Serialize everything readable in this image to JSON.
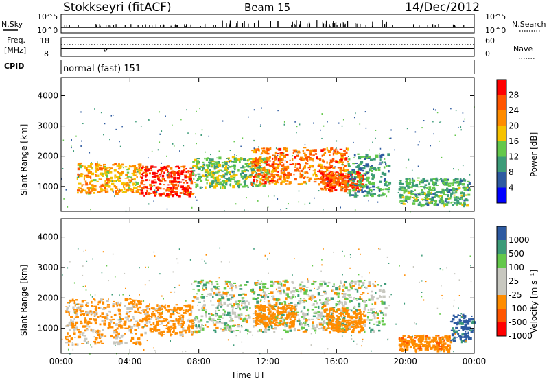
{
  "header": {
    "station": "Stokkseyri (fitACF)",
    "beam": "Beam 15",
    "date": "14/Dec/2012"
  },
  "nsky_panel": {
    "left_label": "N.Sky",
    "right_label": "N.Search",
    "left_ticks": [
      "10^5",
      "10^0"
    ],
    "right_ticks": [
      "10^5",
      "10^0"
    ]
  },
  "freq_panel": {
    "left_label_line1": "Freq.",
    "left_label_line2": "[MHz]",
    "left_ticks": [
      "18",
      "8"
    ],
    "right_ticks": [
      "60",
      "0"
    ],
    "right_label": "Nave"
  },
  "cpid_panel": {
    "label": "CPID",
    "program": "normal (fast) 151"
  },
  "chart_data": [
    {
      "type": "heatmap",
      "quantity": "power",
      "ylabel": "Slant Range [km]",
      "y_ticks": [
        "4000",
        "3000",
        "2000",
        "1000"
      ],
      "ylim": [
        180,
        4600
      ],
      "x_ticks": [
        "00:00",
        "04:00",
        "08:00",
        "12:00",
        "16:00",
        "20:00",
        "00:00"
      ],
      "colorbar_label": "Power [dB]",
      "colorbar_ticks": [
        "28",
        "24",
        "20",
        "16",
        "12",
        "8",
        "4"
      ],
      "colors": [
        "#ff0000",
        "#ff5500",
        "#ff8c00",
        "#f7c200",
        "#64c84b",
        "#3c9b78",
        "#2d5aa0",
        "#0000ff"
      ],
      "echo_regions": [
        {
          "t0": 0.9,
          "t1": 4.6,
          "r0": 800,
          "r1": 1800,
          "level": 18
        },
        {
          "t0": 4.6,
          "t1": 7.6,
          "r0": 700,
          "r1": 1700,
          "level": 26
        },
        {
          "t0": 7.6,
          "t1": 12.0,
          "r0": 1000,
          "r1": 2000,
          "level": 12
        },
        {
          "t0": 11.0,
          "t1": 16.6,
          "r0": 1100,
          "r1": 2300,
          "level": 22
        },
        {
          "t0": 15.0,
          "t1": 17.5,
          "r0": 900,
          "r1": 1500,
          "level": 24
        },
        {
          "t0": 16.6,
          "t1": 19.0,
          "r0": 700,
          "r1": 2100,
          "level": 8
        },
        {
          "t0": 19.6,
          "t1": 23.7,
          "r0": 400,
          "r1": 1300,
          "level": 10
        }
      ]
    },
    {
      "type": "heatmap",
      "quantity": "velocity",
      "ylabel": "Slant Range [km]",
      "y_ticks": [
        "4000",
        "3000",
        "2000",
        "1000"
      ],
      "ylim": [
        180,
        4600
      ],
      "x_ticks": [
        "00:00",
        "04:00",
        "08:00",
        "12:00",
        "16:00",
        "20:00",
        "00:00"
      ],
      "xlabel": "Time UT",
      "colorbar_label": "Velocity [m s⁻¹]",
      "colorbar_ticks": [
        "1000",
        "500",
        "100",
        "25",
        "-25",
        "-100",
        "-500",
        "-1000"
      ],
      "colors": [
        "#2d5aa0",
        "#3c9b78",
        "#64c84b",
        "#c8c8c0",
        "#c8c8c0",
        "#ff8c00",
        "#ff5500",
        "#ff0000"
      ],
      "echo_regions": [
        {
          "t0": 0.2,
          "t1": 4.6,
          "r0": 500,
          "r1": 2000,
          "level": -150
        },
        {
          "t0": 4.6,
          "t1": 7.6,
          "r0": 800,
          "r1": 1800,
          "level": -200
        },
        {
          "t0": 7.6,
          "t1": 18.8,
          "r0": 900,
          "r1": 2600,
          "level": 0
        },
        {
          "t0": 11.2,
          "t1": 13.6,
          "r0": 1100,
          "r1": 1800,
          "level": -300
        },
        {
          "t0": 15.2,
          "t1": 17.6,
          "r0": 900,
          "r1": 1700,
          "level": -250
        },
        {
          "t0": 19.6,
          "t1": 22.6,
          "r0": 300,
          "r1": 800,
          "level": -400
        },
        {
          "t0": 22.6,
          "t1": 23.9,
          "r0": 600,
          "r1": 1500,
          "level": 600
        }
      ]
    }
  ]
}
